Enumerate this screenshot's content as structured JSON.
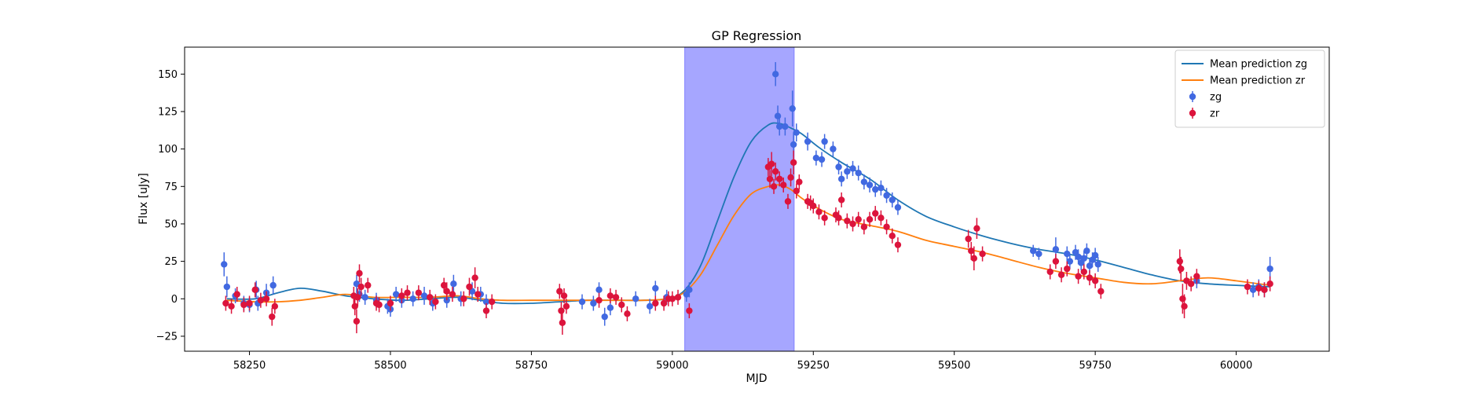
{
  "chart_data": {
    "type": "scatter",
    "title": "GP Regression",
    "xlabel": "MJD",
    "ylabel": "Flux [uJy]",
    "xlim": [
      58135,
      60165
    ],
    "ylim": [
      -35,
      168
    ],
    "xticks": [
      58250,
      58500,
      58750,
      59000,
      59250,
      59500,
      59750,
      60000
    ],
    "yticks": [
      -25,
      0,
      25,
      50,
      75,
      100,
      125,
      150
    ],
    "grid": false,
    "legend_position": "top-right",
    "shaded_region": {
      "x_start": 59022,
      "x_end": 59216,
      "color": "#a6a6ff"
    },
    "legend": [
      {
        "label": "Mean prediction zg",
        "kind": "line",
        "color": "#1f77b4"
      },
      {
        "label": "Mean prediction zr",
        "kind": "line",
        "color": "#ff7f0e"
      },
      {
        "label": "zg",
        "kind": "errorbar",
        "color": "#4169e1"
      },
      {
        "label": "zr",
        "kind": "errorbar",
        "color": "#dc143c"
      }
    ],
    "lines": [
      {
        "name": "Mean prediction zg",
        "color": "#1f77b4",
        "x": [
          58210,
          58260,
          58300,
          58340,
          58380,
          58420,
          58470,
          58520,
          58570,
          58620,
          58660,
          58700,
          58750,
          58800,
          58850,
          58900,
          58950,
          58990,
          59020,
          59050,
          59080,
          59110,
          59140,
          59170,
          59190,
          59210,
          59230,
          59260,
          59300,
          59350,
          59400,
          59450,
          59500,
          59550,
          59600,
          59650,
          59700,
          59750,
          59800,
          59850,
          59900,
          59950,
          60000,
          60060
        ],
        "y": [
          0,
          0,
          4,
          7,
          5,
          2,
          0,
          -1,
          0,
          1,
          -1,
          -3,
          -3,
          -2,
          -1,
          -1,
          -1,
          0,
          5,
          22,
          52,
          82,
          105,
          116,
          117,
          114,
          110,
          101,
          91,
          80,
          66,
          55,
          48,
          42,
          37,
          33,
          30,
          26,
          21,
          16,
          12,
          10,
          9,
          8
        ]
      },
      {
        "name": "Mean prediction zr",
        "color": "#ff7f0e",
        "x": [
          58210,
          58260,
          58300,
          58340,
          58380,
          58420,
          58470,
          58520,
          58570,
          58620,
          58660,
          58700,
          58750,
          58800,
          58850,
          58900,
          58950,
          58990,
          59020,
          59050,
          59080,
          59110,
          59140,
          59170,
          59190,
          59210,
          59230,
          59260,
          59300,
          59350,
          59400,
          59450,
          59500,
          59550,
          59600,
          59650,
          59700,
          59750,
          59800,
          59850,
          59900,
          59950,
          60000,
          60060
        ],
        "y": [
          -1,
          -2,
          -2,
          -1,
          1,
          3,
          1,
          1,
          1,
          2,
          0,
          -1,
          -1,
          -1,
          -1,
          -1,
          -1,
          0,
          4,
          16,
          36,
          56,
          70,
          75,
          76,
          73,
          67,
          60,
          53,
          49,
          45,
          39,
          35,
          31,
          26,
          21,
          17,
          14,
          11,
          10,
          12,
          14,
          12,
          9
        ]
      }
    ],
    "series": [
      {
        "name": "zg",
        "color": "#4169e1",
        "x": [
          58205,
          58210,
          58225,
          58240,
          58250,
          58262,
          58265,
          58280,
          58292,
          58440,
          58445,
          58455,
          58475,
          58495,
          58500,
          58510,
          58520,
          58540,
          58560,
          58575,
          58600,
          58612,
          58625,
          58645,
          58660,
          58670,
          58840,
          58860,
          58870,
          58880,
          58890,
          58935,
          58960,
          58970,
          58990,
          59025,
          59030,
          59183,
          59187,
          59190,
          59200,
          59213,
          59215,
          59220,
          59240,
          59255,
          59265,
          59270,
          59285,
          59295,
          59300,
          59310,
          59320,
          59330,
          59340,
          59350,
          59360,
          59370,
          59380,
          59390,
          59400,
          59640,
          59650,
          59680,
          59700,
          59705,
          59715,
          59720,
          59725,
          59730,
          59735,
          59740,
          59745,
          59750,
          59755,
          59930,
          60030,
          60040,
          60050,
          60060
        ],
        "y": [
          23,
          8,
          2,
          -3,
          -4,
          6,
          -3,
          4,
          9,
          10,
          3,
          1,
          -1,
          -5,
          -7,
          3,
          -1,
          0,
          2,
          -3,
          -1,
          10,
          0,
          5,
          3,
          -2,
          -2,
          -3,
          6,
          -12,
          -6,
          0,
          -5,
          7,
          1,
          3,
          6,
          150,
          122,
          115,
          115,
          127,
          103,
          111,
          105,
          94,
          93,
          105,
          100,
          88,
          80,
          85,
          87,
          84,
          78,
          76,
          73,
          74,
          69,
          66,
          61,
          32,
          30,
          33,
          30,
          25,
          31,
          28,
          24,
          27,
          32,
          22,
          26,
          29,
          23,
          12,
          6,
          8,
          6,
          20
        ],
        "err": [
          8,
          7,
          5,
          5,
          5,
          6,
          5,
          6,
          6,
          6,
          5,
          5,
          5,
          5,
          5,
          5,
          5,
          5,
          6,
          5,
          5,
          6,
          5,
          6,
          5,
          5,
          5,
          5,
          5,
          6,
          5,
          5,
          5,
          5,
          5,
          5,
          5,
          8,
          7,
          6,
          6,
          12,
          8,
          6,
          6,
          5,
          5,
          5,
          5,
          5,
          5,
          5,
          5,
          5,
          5,
          5,
          5,
          5,
          5,
          5,
          5,
          4,
          4,
          8,
          5,
          5,
          5,
          5,
          5,
          5,
          5,
          5,
          5,
          5,
          5,
          5,
          5,
          5,
          5,
          8
        ]
      },
      {
        "name": "zr",
        "color": "#dc143c",
        "x": [
          58208,
          58218,
          58228,
          58240,
          58250,
          58260,
          58270,
          58280,
          58290,
          58295,
          58435,
          58437,
          58440,
          58442,
          58445,
          58448,
          58460,
          58475,
          58480,
          58500,
          58520,
          58530,
          58550,
          58570,
          58580,
          58595,
          58600,
          58610,
          58630,
          58640,
          58650,
          58655,
          58670,
          58680,
          58800,
          58803,
          58805,
          58808,
          58812,
          58870,
          58890,
          58900,
          58910,
          58920,
          58970,
          58985,
          58993,
          59000,
          59010,
          59030,
          59170,
          59173,
          59176,
          59180,
          59183,
          59190,
          59197,
          59205,
          59210,
          59215,
          59220,
          59225,
          59240,
          59245,
          59250,
          59260,
          59270,
          59290,
          59295,
          59300,
          59310,
          59320,
          59330,
          59340,
          59350,
          59360,
          59370,
          59380,
          59390,
          59400,
          59525,
          59530,
          59535,
          59540,
          59550,
          59670,
          59680,
          59690,
          59700,
          59720,
          59730,
          59740,
          59750,
          59760,
          59900,
          59902,
          59905,
          59908,
          59912,
          59920,
          59930,
          60020,
          60040,
          60050,
          60060
        ],
        "y": [
          -3,
          -5,
          3,
          -4,
          -3,
          6,
          -1,
          0,
          -12,
          -5,
          2,
          -5,
          -15,
          1,
          17,
          8,
          9,
          -3,
          -4,
          -3,
          2,
          4,
          4,
          1,
          -2,
          9,
          5,
          3,
          0,
          8,
          14,
          3,
          -8,
          -2,
          5,
          -8,
          -16,
          2,
          -5,
          -1,
          2,
          1,
          -4,
          -10,
          -3,
          -3,
          0,
          0,
          1,
          -8,
          88,
          80,
          90,
          75,
          85,
          80,
          76,
          65,
          81,
          91,
          72,
          78,
          65,
          64,
          62,
          58,
          54,
          56,
          54,
          66,
          52,
          50,
          53,
          48,
          53,
          57,
          54,
          48,
          42,
          36,
          40,
          32,
          27,
          47,
          30,
          18,
          25,
          16,
          20,
          15,
          18,
          14,
          12,
          5,
          25,
          20,
          0,
          -5,
          12,
          10,
          15,
          8,
          7,
          6,
          10
        ],
        "err": [
          5,
          5,
          5,
          5,
          5,
          5,
          5,
          5,
          6,
          5,
          6,
          6,
          8,
          6,
          6,
          6,
          5,
          5,
          5,
          5,
          5,
          5,
          5,
          5,
          5,
          5,
          6,
          5,
          5,
          6,
          7,
          5,
          5,
          5,
          5,
          6,
          8,
          5,
          5,
          5,
          5,
          5,
          5,
          5,
          5,
          5,
          5,
          5,
          5,
          5,
          6,
          6,
          8,
          5,
          6,
          5,
          5,
          5,
          6,
          8,
          5,
          5,
          5,
          5,
          5,
          5,
          5,
          5,
          5,
          5,
          5,
          5,
          5,
          5,
          5,
          5,
          5,
          5,
          5,
          5,
          6,
          6,
          8,
          7,
          5,
          5,
          5,
          5,
          5,
          5,
          5,
          5,
          5,
          5,
          8,
          8,
          10,
          8,
          6,
          5,
          5,
          5,
          5,
          5,
          5
        ]
      }
    ]
  }
}
